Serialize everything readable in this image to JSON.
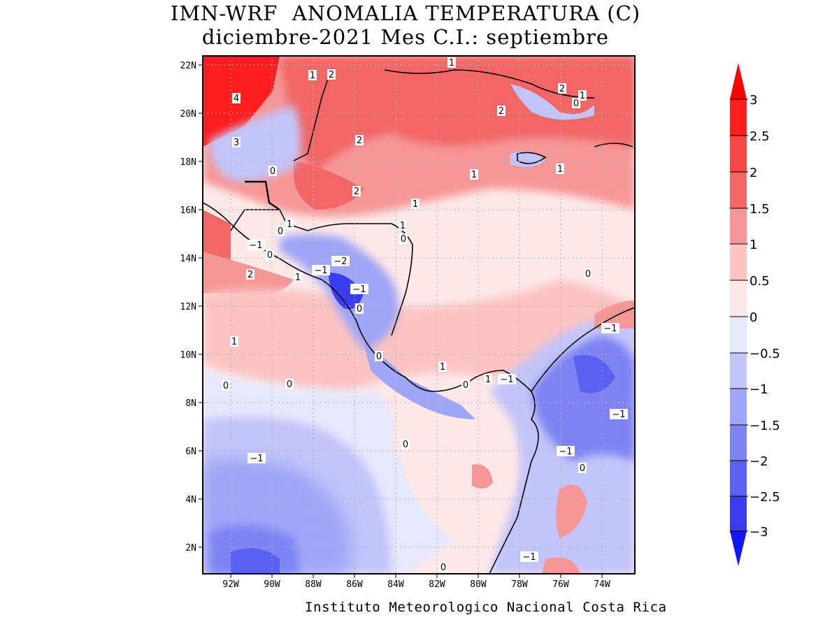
{
  "title_line1": "IMN-WRF  ANOMALIA TEMPERATURA (C)",
  "title_line2": "diciembre-2021 Mes C.I.: septiembre",
  "credit": "Instituto Meteorologico Nacional Costa Rica",
  "lat_ticks": [
    "22N",
    "20N",
    "18N",
    "16N",
    "14N",
    "12N",
    "10N",
    "8N",
    "6N",
    "4N",
    "2N"
  ],
  "lon_ticks": [
    "92W",
    "90W",
    "88W",
    "86W",
    "84W",
    "82W",
    "80W",
    "78W",
    "76W",
    "74W"
  ],
  "colorbar": {
    "labels": [
      "3",
      "2.5",
      "2",
      "1.5",
      "1",
      "0.5",
      "0",
      "−0.5",
      "−1",
      "−1.5",
      "−2",
      "−2.5",
      "−3"
    ],
    "colors": [
      "#ff1e1e",
      "#f64646",
      "#f26666",
      "#f79696",
      "#fcc3c3",
      "#fde8e8",
      "#e6e8fc",
      "#c2c5fa",
      "#9fa5f7",
      "#7d83f3",
      "#5a60ef",
      "#3a3cef"
    ],
    "over_color": "#ff0000",
    "under_color": "#1414ff"
  },
  "contour_labels": [
    "4",
    "3",
    "2",
    "1",
    "2",
    "2",
    "2",
    "2",
    "1",
    "1",
    "1",
    "0",
    "1",
    "0",
    "1",
    "0",
    "−1",
    "0",
    "2",
    "1",
    "−1",
    "−2",
    "−1",
    "0",
    "1",
    "0",
    "1",
    "0",
    "0",
    "0",
    "−1",
    "1",
    "0",
    "−1",
    "−1",
    "−1",
    "−1",
    "0",
    "0",
    "−1",
    "−1",
    "0",
    "1",
    "0",
    "2",
    "1"
  ]
}
